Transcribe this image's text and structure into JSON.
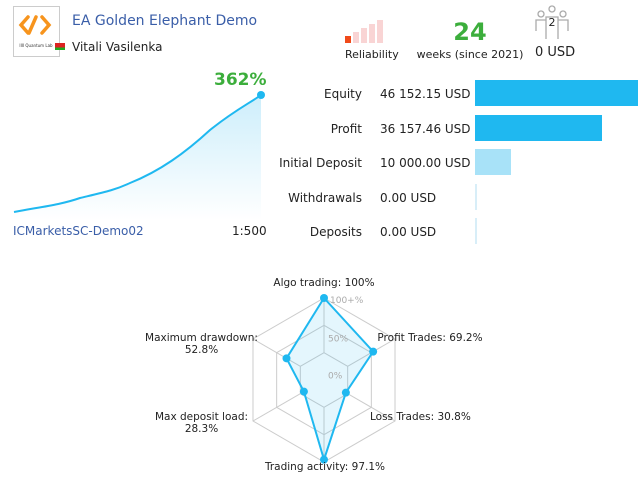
{
  "header": {
    "title": "EA Golden Elephant Demo",
    "author": "Vitali Vasilenka",
    "logo_text": "IIII Quantum Lab",
    "reliability_label": "Reliability",
    "weeks": "24",
    "weeks_label": "weeks (since 2021)",
    "subscribers": "2",
    "subscription_price": "0 USD"
  },
  "growth": {
    "percent": "362%",
    "server": "ICMarketsSC-Demo02",
    "leverage": "1:500"
  },
  "stats": [
    {
      "label": "Equity",
      "value": "46 152.15 USD",
      "fraction": 1.0
    },
    {
      "label": "Profit",
      "value": "36 157.46 USD",
      "fraction": 0.78
    },
    {
      "label": "Initial Deposit",
      "value": "10 000.00 USD",
      "fraction": 0.22
    },
    {
      "label": "Withdrawals",
      "value": "0.00 USD",
      "fraction": 0
    },
    {
      "label": "Deposits",
      "value": "0.00 USD",
      "fraction": 0
    }
  ],
  "colors": {
    "accent": "#1fb8f0",
    "green": "#3cae3c",
    "title": "#3a5ea8",
    "reliability": "#f04a1a"
  },
  "chart_data": {
    "type": "radar",
    "ticks": [
      "100+%",
      "50%",
      "0%"
    ],
    "axes": [
      {
        "label": "Algo trading: 100%",
        "value": 100
      },
      {
        "label": "Profit Trades: 69.2%",
        "value": 69.2
      },
      {
        "label": "Loss Trades: 30.8%",
        "value": 30.8
      },
      {
        "label": "Trading activity: 97.1%",
        "value": 97.1
      },
      {
        "label": "Max deposit load: 28.3%",
        "value": 28.3
      },
      {
        "label": "Maximum drawdown: 52.8%",
        "value": 52.8
      }
    ]
  }
}
